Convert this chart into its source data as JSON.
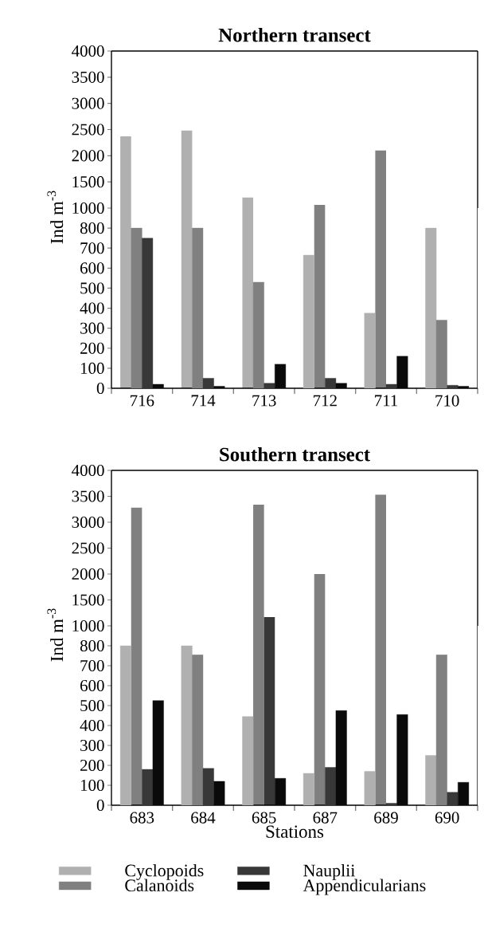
{
  "chart_data": [
    {
      "type": "bar",
      "title": "Northern transect",
      "categories": [
        "716",
        "714",
        "713",
        "712",
        "711",
        "710"
      ],
      "series": [
        {
          "color": "#b0b0b0",
          "values": [
            2370,
            2480,
            1200,
            null,
            null,
            null
          ]
        },
        {
          "color": "#808080",
          "values": [
            null,
            null,
            null,
            1060,
            2100,
            null
          ]
        },
        {
          "color": "#383838",
          "values": [
            null,
            null,
            null,
            null,
            null,
            null
          ]
        },
        {
          "color": "#0a0a0a",
          "values": [
            null,
            null,
            null,
            null,
            null,
            null
          ]
        }
      ],
      "ylim": [
        1000,
        4000
      ],
      "yticks": [
        1000,
        1500,
        2000,
        2500,
        3000,
        3500,
        4000
      ],
      "tick_labels": "y"
    },
    {
      "type": "bar",
      "ylabel": "Ind m$^{-3}$",
      "categories": [
        "716",
        "714",
        "713",
        "712",
        "711",
        "710"
      ],
      "series": [
        {
          "color": "#b0b0b0",
          "values": [
            null,
            null,
            null,
            665,
            375,
            800
          ]
        },
        {
          "color": "#808080",
          "values": [
            800,
            800,
            530,
            null,
            null,
            340
          ]
        },
        {
          "color": "#383838",
          "values": [
            750,
            50,
            25,
            50,
            20,
            15
          ]
        },
        {
          "color": "#0a0a0a",
          "values": [
            20,
            10,
            120,
            25,
            160,
            10
          ]
        }
      ],
      "ylim": [
        0,
        900
      ],
      "yticks": [
        0,
        100,
        200,
        300,
        400,
        500,
        600,
        700,
        800
      ]
    },
    {
      "type": "bar",
      "title": "Southern transect",
      "categories": [
        "683",
        "684",
        "685",
        "687",
        "689",
        "690"
      ],
      "series": [
        {
          "color": "#b0b0b0",
          "values": [
            null,
            null,
            null,
            null,
            null,
            null
          ]
        },
        {
          "color": "#808080",
          "values": [
            3280,
            null,
            3340,
            2000,
            3530,
            null
          ]
        },
        {
          "color": "#383838",
          "values": [
            null,
            null,
            1170,
            null,
            null,
            null
          ]
        },
        {
          "color": "#0a0a0a",
          "values": [
            null,
            null,
            null,
            null,
            null,
            null
          ]
        }
      ],
      "ylim": [
        1000,
        4000
      ],
      "yticks": [
        1000,
        1500,
        2000,
        2500,
        3000,
        3500,
        4000
      ],
      "tick_labels": "y"
    },
    {
      "type": "bar",
      "ylabel": "Ind m$^{-3}$",
      "xlabel": "Stations",
      "categories": [
        "683",
        "684",
        "685",
        "687",
        "689",
        "690"
      ],
      "series": [
        {
          "name": "Cyclopoids",
          "color": "#b0b0b0",
          "values": [
            800,
            800,
            445,
            160,
            170,
            250
          ]
        },
        {
          "name": "Calanoids",
          "color": "#808080",
          "values": [
            null,
            755,
            null,
            null,
            null,
            755
          ]
        },
        {
          "name": "Nauplii",
          "color": "#383838",
          "values": [
            180,
            185,
            null,
            190,
            10,
            65
          ]
        },
        {
          "name": "Appendicularians",
          "color": "#0a0a0a",
          "values": [
            525,
            120,
            135,
            475,
            455,
            115
          ]
        }
      ],
      "ylim": [
        0,
        900
      ],
      "yticks": [
        0,
        100,
        200,
        300,
        400,
        500,
        600,
        700,
        800
      ],
      "legend": "bottom"
    }
  ]
}
